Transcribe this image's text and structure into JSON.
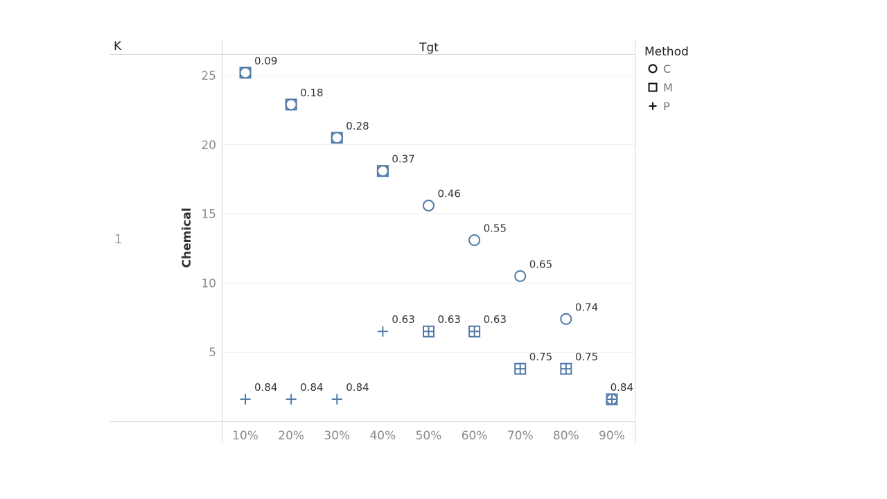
{
  "chart_data": {
    "type": "scatter",
    "row_header": "K",
    "row_value": "1",
    "column_header": "Tgt",
    "ylabel": "Chemical",
    "x_categories": [
      "10%",
      "20%",
      "30%",
      "40%",
      "50%",
      "60%",
      "70%",
      "80%",
      "90%"
    ],
    "y_ticks": [
      "5",
      "10",
      "15",
      "20",
      "25"
    ],
    "ylim": [
      0,
      26.5
    ],
    "grid": true,
    "marker_color": "#4e79a7",
    "legend": {
      "title": "Method",
      "placement": "right",
      "entries": [
        {
          "label": "C",
          "shape": "circle"
        },
        {
          "label": "M",
          "shape": "square"
        },
        {
          "label": "P",
          "shape": "plus"
        }
      ]
    },
    "series": [
      {
        "name": "C",
        "shape": "circle",
        "x": [
          "10%",
          "20%",
          "30%",
          "40%",
          "50%",
          "60%",
          "70%",
          "80%",
          "90%"
        ],
        "y": [
          25.2,
          22.9,
          20.5,
          18.1,
          15.6,
          13.1,
          10.5,
          7.4,
          1.6
        ]
      },
      {
        "name": "M",
        "shape": "square",
        "x": [
          "10%",
          "20%",
          "30%",
          "40%",
          "50%",
          "60%",
          "70%",
          "80%",
          "90%"
        ],
        "y": [
          25.2,
          22.9,
          20.5,
          18.1,
          6.5,
          6.5,
          3.8,
          3.8,
          1.6
        ]
      },
      {
        "name": "P",
        "shape": "plus",
        "x": [
          "10%",
          "20%",
          "30%",
          "40%",
          "50%",
          "60%",
          "70%",
          "80%",
          "90%"
        ],
        "y": [
          1.6,
          1.6,
          1.6,
          6.5,
          6.5,
          6.5,
          3.8,
          3.8,
          1.6
        ]
      }
    ],
    "annotations": [
      {
        "x": "10%",
        "y": 25.2,
        "text": "0.09"
      },
      {
        "x": "20%",
        "y": 22.9,
        "text": "0.18"
      },
      {
        "x": "30%",
        "y": 20.5,
        "text": "0.28"
      },
      {
        "x": "40%",
        "y": 18.1,
        "text": "0.37"
      },
      {
        "x": "50%",
        "y": 15.6,
        "text": "0.46"
      },
      {
        "x": "60%",
        "y": 13.1,
        "text": "0.55"
      },
      {
        "x": "70%",
        "y": 10.5,
        "text": "0.65"
      },
      {
        "x": "80%",
        "y": 7.4,
        "text": "0.74"
      },
      {
        "x": "40%",
        "y": 6.5,
        "text": "0.63"
      },
      {
        "x": "50%",
        "y": 6.5,
        "text": "0.63"
      },
      {
        "x": "60%",
        "y": 6.5,
        "text": "0.63"
      },
      {
        "x": "70%",
        "y": 3.8,
        "text": "0.75"
      },
      {
        "x": "80%",
        "y": 3.8,
        "text": "0.75"
      },
      {
        "x": "10%",
        "y": 1.6,
        "text": "0.84"
      },
      {
        "x": "20%",
        "y": 1.6,
        "text": "0.84"
      },
      {
        "x": "30%",
        "y": 1.6,
        "text": "0.84"
      },
      {
        "x": "90%",
        "y": 1.6,
        "text": "0.84"
      }
    ]
  }
}
